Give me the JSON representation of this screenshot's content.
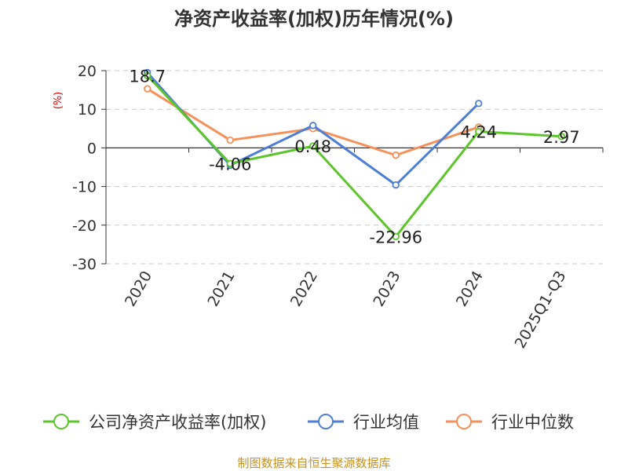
{
  "chart_data": {
    "type": "line",
    "title": "净资产收益率(加权)历年情况(%)",
    "ylabel": "(%)",
    "categories": [
      "2020",
      "2021",
      "2022",
      "2023",
      "2024",
      "2025Q1-Q3"
    ],
    "ylim": [
      -30,
      20
    ],
    "yticks": [
      20,
      10,
      0,
      -10,
      -20,
      -30
    ],
    "grid": true,
    "legend_position": "bottom",
    "series": [
      {
        "name": "公司净资产收益率(加权)",
        "color": "#5cc52b",
        "values": [
          18.7,
          -4.06,
          0.48,
          -22.96,
          4.24,
          2.97
        ],
        "labels": [
          "18.7",
          "-4.06",
          "0.48",
          "-22.96",
          "4.24",
          "2.97"
        ]
      },
      {
        "name": "行业均值",
        "color": "#4f7fd4",
        "values": [
          19.5,
          -4.5,
          5.8,
          -9.6,
          11.5,
          null
        ]
      },
      {
        "name": "行业中位数",
        "color": "#f5905a",
        "values": [
          15.3,
          2.0,
          5.0,
          -1.9,
          5.4,
          null
        ]
      }
    ]
  },
  "source": "制图数据来自恒生聚源数据库"
}
